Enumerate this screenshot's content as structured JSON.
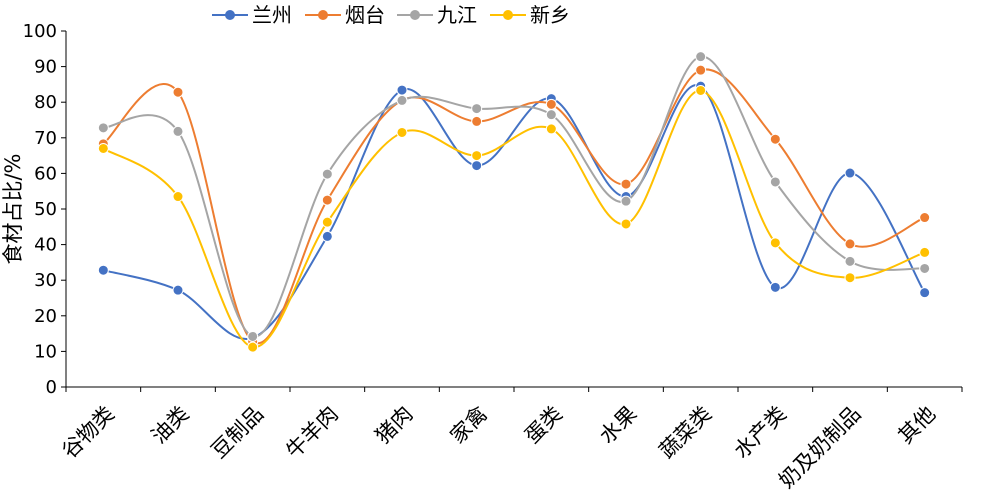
{
  "chart_data": {
    "type": "line",
    "title": "",
    "xlabel": "",
    "ylabel": "食材占比/%",
    "ylim": [
      0,
      100
    ],
    "yticks": [
      0,
      10,
      20,
      30,
      40,
      50,
      60,
      70,
      80,
      90,
      100
    ],
    "grid": false,
    "legend": "top",
    "smooth": true,
    "categories": [
      "谷物类",
      "油类",
      "豆制品",
      "牛羊肉",
      "猪肉",
      "家禽",
      "蛋类",
      "水果",
      "蔬菜类",
      "水产类",
      "奶及奶制品",
      "其他"
    ],
    "series": [
      {
        "name": "兰州",
        "color": "#4472c4",
        "values": [
          32.8,
          27.2,
          13.8,
          42.3,
          83.4,
          62.2,
          81.0,
          53.5,
          84.5,
          28.0,
          60.1,
          26.5
        ]
      },
      {
        "name": "烟台",
        "color": "#ed7d31",
        "values": [
          68.3,
          82.8,
          12.8,
          52.5,
          80.5,
          74.6,
          79.4,
          57.0,
          89.0,
          69.6,
          40.2,
          47.6
        ]
      },
      {
        "name": "九江",
        "color": "#a5a5a5",
        "values": [
          72.8,
          71.8,
          14.2,
          59.8,
          80.5,
          78.2,
          76.5,
          52.2,
          92.8,
          57.6,
          35.3,
          33.3
        ]
      },
      {
        "name": "新乡",
        "color": "#ffc000",
        "values": [
          67.0,
          53.5,
          11.2,
          46.3,
          71.5,
          65.0,
          72.5,
          45.8,
          83.3,
          40.5,
          30.7,
          37.8
        ]
      }
    ]
  }
}
